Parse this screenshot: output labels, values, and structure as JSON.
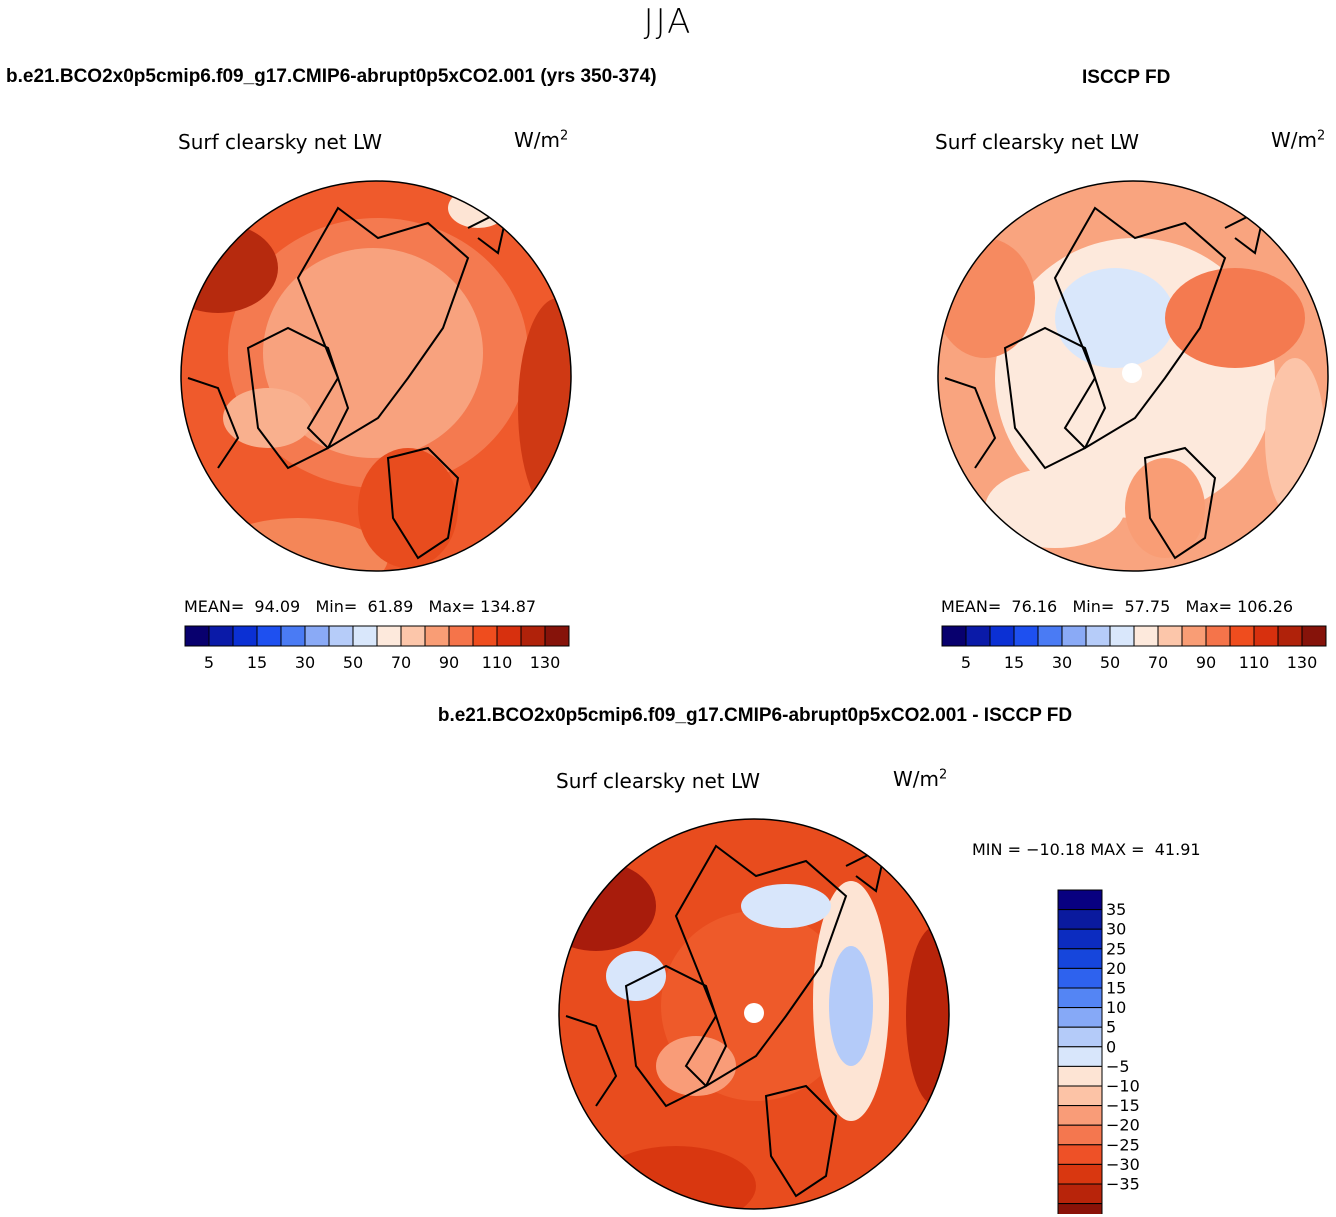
{
  "header": {
    "season": "JJA",
    "case_title": "b.e21.BCO2x0p5cmip6.f09_g17.CMIP6-abrupt0p5xCO2.001 (yrs 350-374)",
    "obs_title": "ISCCP FD",
    "diff_title": "b.e21.BCO2x0p5cmip6.f09_g17.CMIP6-abrupt0p5xCO2.001 - ISCCP FD"
  },
  "panels": {
    "model": {
      "variable": "Surf clearsky net LW",
      "units_base": "W/m",
      "units_exp": "2",
      "stats_text": "MEAN=  94.09   Min=  61.89   Max= 134.87"
    },
    "obs": {
      "variable": "Surf clearsky net LW",
      "units_base": "W/m",
      "units_exp": "2",
      "stats_text": "MEAN=  76.16   Min=  57.75   Max= 106.26"
    },
    "diff": {
      "variable": "Surf clearsky net LW",
      "units_base": "W/m",
      "units_exp": "2",
      "stats_text": "MIN = −10.18 MAX =  41.91"
    }
  },
  "colors": {
    "abs_colorbar": [
      "#08006e",
      "#0a1aa8",
      "#0b30d4",
      "#1e50f0",
      "#4a7bf4",
      "#8aaaf6",
      "#b6ccf9",
      "#d9e7fb",
      "#fde9dc",
      "#fcc6aa",
      "#f99d75",
      "#f5744a",
      "#ef4d1e",
      "#d7300e",
      "#b0220a",
      "#86130a"
    ],
    "diff_colorbar": [
      "#080080",
      "#0a1a9e",
      "#0c2cc0",
      "#1646dc",
      "#2e62ee",
      "#5485f4",
      "#86a9f7",
      "#b4cbf9",
      "#d8e6fb",
      "#fde4d4",
      "#fcc3a6",
      "#f99c78",
      "#f4774f",
      "#ee5127",
      "#d93710",
      "#b8240a",
      "#8a1208"
    ],
    "map_outline": "#000000"
  },
  "chart_data": [
    {
      "type": "heatmap",
      "title": "Surf clearsky net LW",
      "units": "W/m2",
      "projection": "north-polar-stereographic",
      "colorbar_levels": [
        5,
        10,
        15,
        20,
        30,
        40,
        50,
        60,
        70,
        80,
        90,
        100,
        110,
        120,
        130
      ],
      "colorbar_tick_labels": [
        "5",
        "15",
        "30",
        "50",
        "70",
        "90",
        "110",
        "130"
      ],
      "stats": {
        "mean": 94.09,
        "min": 61.89,
        "max": 134.87
      }
    },
    {
      "type": "heatmap",
      "title": "Surf clearsky net LW",
      "units": "W/m2",
      "projection": "north-polar-stereographic",
      "colorbar_levels": [
        5,
        10,
        15,
        20,
        30,
        40,
        50,
        60,
        70,
        80,
        90,
        100,
        110,
        120,
        130
      ],
      "colorbar_tick_labels": [
        "5",
        "15",
        "30",
        "50",
        "70",
        "90",
        "110",
        "130"
      ],
      "stats": {
        "mean": 76.16,
        "min": 57.75,
        "max": 106.26
      }
    },
    {
      "type": "heatmap",
      "title": "Surf clearsky net LW",
      "units": "W/m2",
      "projection": "north-polar-stereographic",
      "colorbar_levels": [
        35,
        30,
        25,
        20,
        15,
        10,
        5,
        0,
        -5,
        -10,
        -15,
        -20,
        -25,
        -30,
        -35
      ],
      "colorbar_tick_labels": [
        "35",
        "30",
        "25",
        "20",
        "15",
        "10",
        "5",
        "0",
        "−5",
        "−10",
        "−15",
        "−20",
        "−25",
        "−30",
        "−35"
      ],
      "stats": {
        "min": -10.18,
        "max": 41.91
      }
    }
  ]
}
